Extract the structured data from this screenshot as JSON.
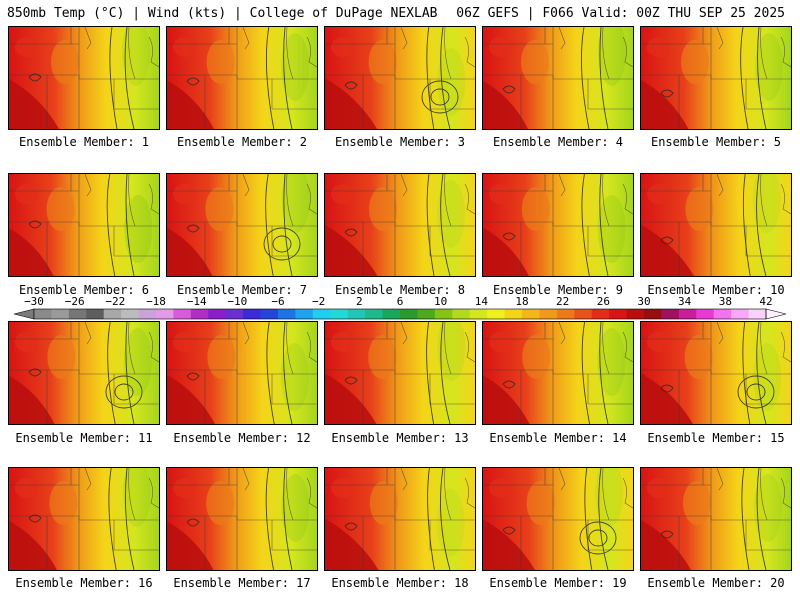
{
  "header": {
    "left": "850mb Temp (°C) | Wind (kts) | College of DuPage NEXLAB",
    "right": "06Z GEFS | F066 Valid: 00Z THU SEP 25 2025"
  },
  "colorbar": {
    "labels": [
      "−30",
      "−26",
      "−22",
      "−18",
      "−14",
      "−10",
      "−6",
      "−2",
      "2",
      "6",
      "10",
      "14",
      "18",
      "22",
      "26",
      "30",
      "34",
      "38",
      "42"
    ],
    "colors": [
      "#8a8a8a",
      "#9a9a9a",
      "#767676",
      "#5e5e5e",
      "#a8a8a8",
      "#bcbcbc",
      "#c9a3d9",
      "#e49be7",
      "#d65cd9",
      "#b12ec4",
      "#8a1fc9",
      "#6b2fd0",
      "#3a2ad8",
      "#2445d9",
      "#1e74e2",
      "#1ea3ec",
      "#23cdf2",
      "#25d8d8",
      "#21c7b4",
      "#1eb98d",
      "#1aa75c",
      "#2a9a2e",
      "#4daa1c",
      "#86c317",
      "#b2d91e",
      "#d4e61e",
      "#f0f01e",
      "#f4d419",
      "#f4b719",
      "#f09a19",
      "#ec7a19",
      "#e85319",
      "#e42d19",
      "#d81414",
      "#b80e0e",
      "#980e0e",
      "#a0125e",
      "#c81e9a",
      "#e83ad2",
      "#f472ee",
      "#f8a8f5",
      "#fbd2fb"
    ]
  },
  "members": [
    {
      "label": "Ensemble Member: 1",
      "warm": 0.8
    },
    {
      "label": "Ensemble Member: 2",
      "warm": 0.68
    },
    {
      "label": "Ensemble Member: 3",
      "warm": 0.88
    },
    {
      "label": "Ensemble Member: 4",
      "warm": 0.6
    },
    {
      "label": "Ensemble Member: 5",
      "warm": 0.7
    },
    {
      "label": "Ensemble Member: 6",
      "warm": 0.58
    },
    {
      "label": "Ensemble Member: 7",
      "warm": 0.62
    },
    {
      "label": "Ensemble Member: 8",
      "warm": 0.9
    },
    {
      "label": "Ensemble Member: 9",
      "warm": 0.64
    },
    {
      "label": "Ensemble Member: 10",
      "warm": 0.92
    },
    {
      "label": "Ensemble Member: 11",
      "warm": 0.62
    },
    {
      "label": "Ensemble Member: 12",
      "warm": 0.72
    },
    {
      "label": "Ensemble Member: 13",
      "warm": 0.86
    },
    {
      "label": "Ensemble Member: 14",
      "warm": 0.66
    },
    {
      "label": "Ensemble Member: 15",
      "warm": 0.88
    },
    {
      "label": "Ensemble Member: 16",
      "warm": 0.72
    },
    {
      "label": "Ensemble Member: 17",
      "warm": 0.66
    },
    {
      "label": "Ensemble Member: 18",
      "warm": 0.94
    },
    {
      "label": "Ensemble Member: 19",
      "warm": 0.88
    },
    {
      "label": "Ensemble Member: 20",
      "warm": 0.8
    }
  ]
}
